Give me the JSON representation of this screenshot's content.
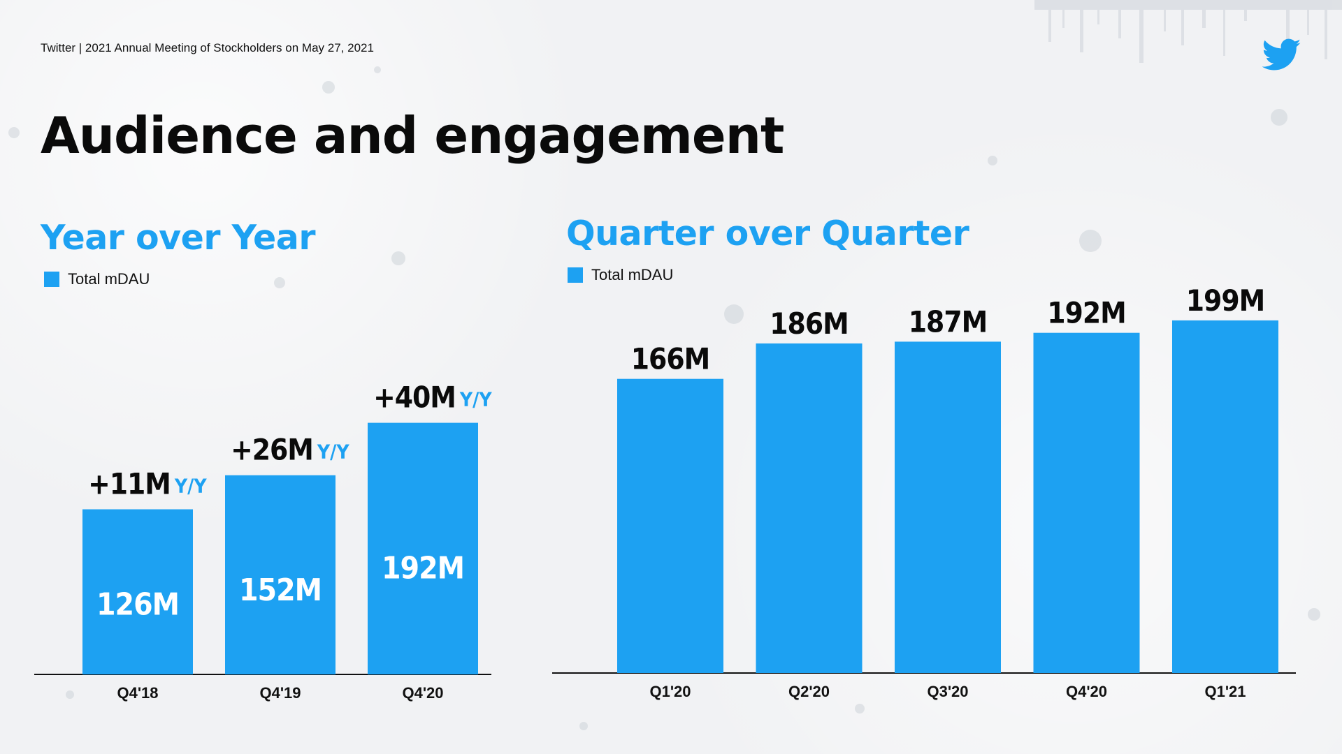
{
  "header": {
    "text": "Twitter | 2021 Annual Meeting of Stockholders on May 27, 2021",
    "logo_icon": "twitter-bird-icon"
  },
  "page_title": "Audience and engagement",
  "colors": {
    "accent": "#1da1f2",
    "text": "#0a0a0a",
    "background": "#f1f2f4"
  },
  "chart_data": [
    {
      "type": "bar",
      "title": "Year over Year",
      "legend": "Total mDAU",
      "categories": [
        "Q4'18",
        "Q4'19",
        "Q4'20"
      ],
      "values": [
        126,
        152,
        192
      ],
      "value_labels": [
        "126M",
        "152M",
        "192M"
      ],
      "annotations": [
        "+11M",
        "+26M",
        "+40M"
      ],
      "annotation_suffix": "Y/Y",
      "ylim": [
        0,
        240
      ]
    },
    {
      "type": "bar",
      "title": "Quarter over Quarter",
      "legend": "Total mDAU",
      "categories": [
        "Q1'20",
        "Q2'20",
        "Q3'20",
        "Q4'20",
        "Q1'21"
      ],
      "values": [
        166,
        186,
        187,
        192,
        199
      ],
      "value_labels": [
        "166M",
        "186M",
        "187M",
        "192M",
        "199M"
      ],
      "ylim": [
        0,
        240
      ]
    }
  ]
}
